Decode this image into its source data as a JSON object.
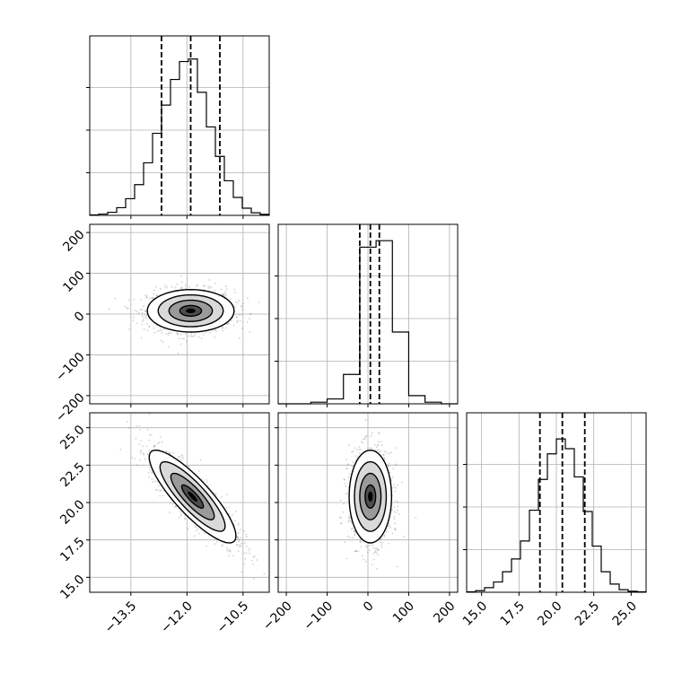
{
  "chart_data": {
    "type": "corner",
    "grid": true,
    "params": [
      {
        "range": [
          -14.6,
          -9.8
        ],
        "ticks": [
          -13.5,
          -12.0,
          -10.5
        ],
        "tick_labels": [
          "−13.5",
          "−12.0",
          "−10.5"
        ],
        "quantiles": [
          -12.68,
          -11.9,
          -11.12
        ],
        "hist": [
          2,
          5,
          12,
          30,
          65,
          120,
          205,
          320,
          430,
          530,
          600,
          610,
          480,
          345,
          230,
          135,
          70,
          28,
          10,
          4
        ],
        "hist_max": 700
      },
      {
        "range": [
          -220,
          220
        ],
        "ticks": [
          -200,
          -100,
          0,
          100,
          200
        ],
        "tick_labels": [
          "−200",
          "−100",
          "0",
          "100",
          "200"
        ],
        "quantiles": [
          -20,
          6,
          28
        ],
        "hist": [
          0,
          0,
          1,
          3,
          18,
          96,
          100,
          44,
          5,
          1,
          0
        ],
        "hist_max": 110
      },
      {
        "range": [
          14.0,
          26.0
        ],
        "ticks": [
          15.0,
          17.5,
          20.0,
          22.5,
          25.0
        ],
        "tick_labels": [
          "15.0",
          "17.5",
          "20.0",
          "22.5",
          "25.0"
        ],
        "quantiles": [
          18.9,
          20.4,
          21.9
        ],
        "hist": [
          2,
          6,
          18,
          40,
          80,
          130,
          200,
          320,
          440,
          540,
          598,
          560,
          450,
          315,
          180,
          80,
          32,
          10,
          4,
          2
        ],
        "hist_max": 700
      }
    ],
    "pairs": [
      {
        "x": 0,
        "y": 1,
        "center": [
          -11.9,
          8
        ],
        "sigma": [
          0.58,
          26
        ],
        "rho": 0.0
      },
      {
        "x": 0,
        "y": 2,
        "center": [
          -11.85,
          20.4
        ],
        "sigma": [
          0.58,
          1.55
        ],
        "rho": -0.85
      },
      {
        "x": 1,
        "y": 2,
        "center": [
          6,
          20.4
        ],
        "sigma": [
          26,
          1.55
        ],
        "rho": 0.0
      }
    ],
    "contour_levels_sigma": [
      0.5,
      1.0,
      1.5,
      2.0
    ],
    "scatter_points": 1300
  }
}
